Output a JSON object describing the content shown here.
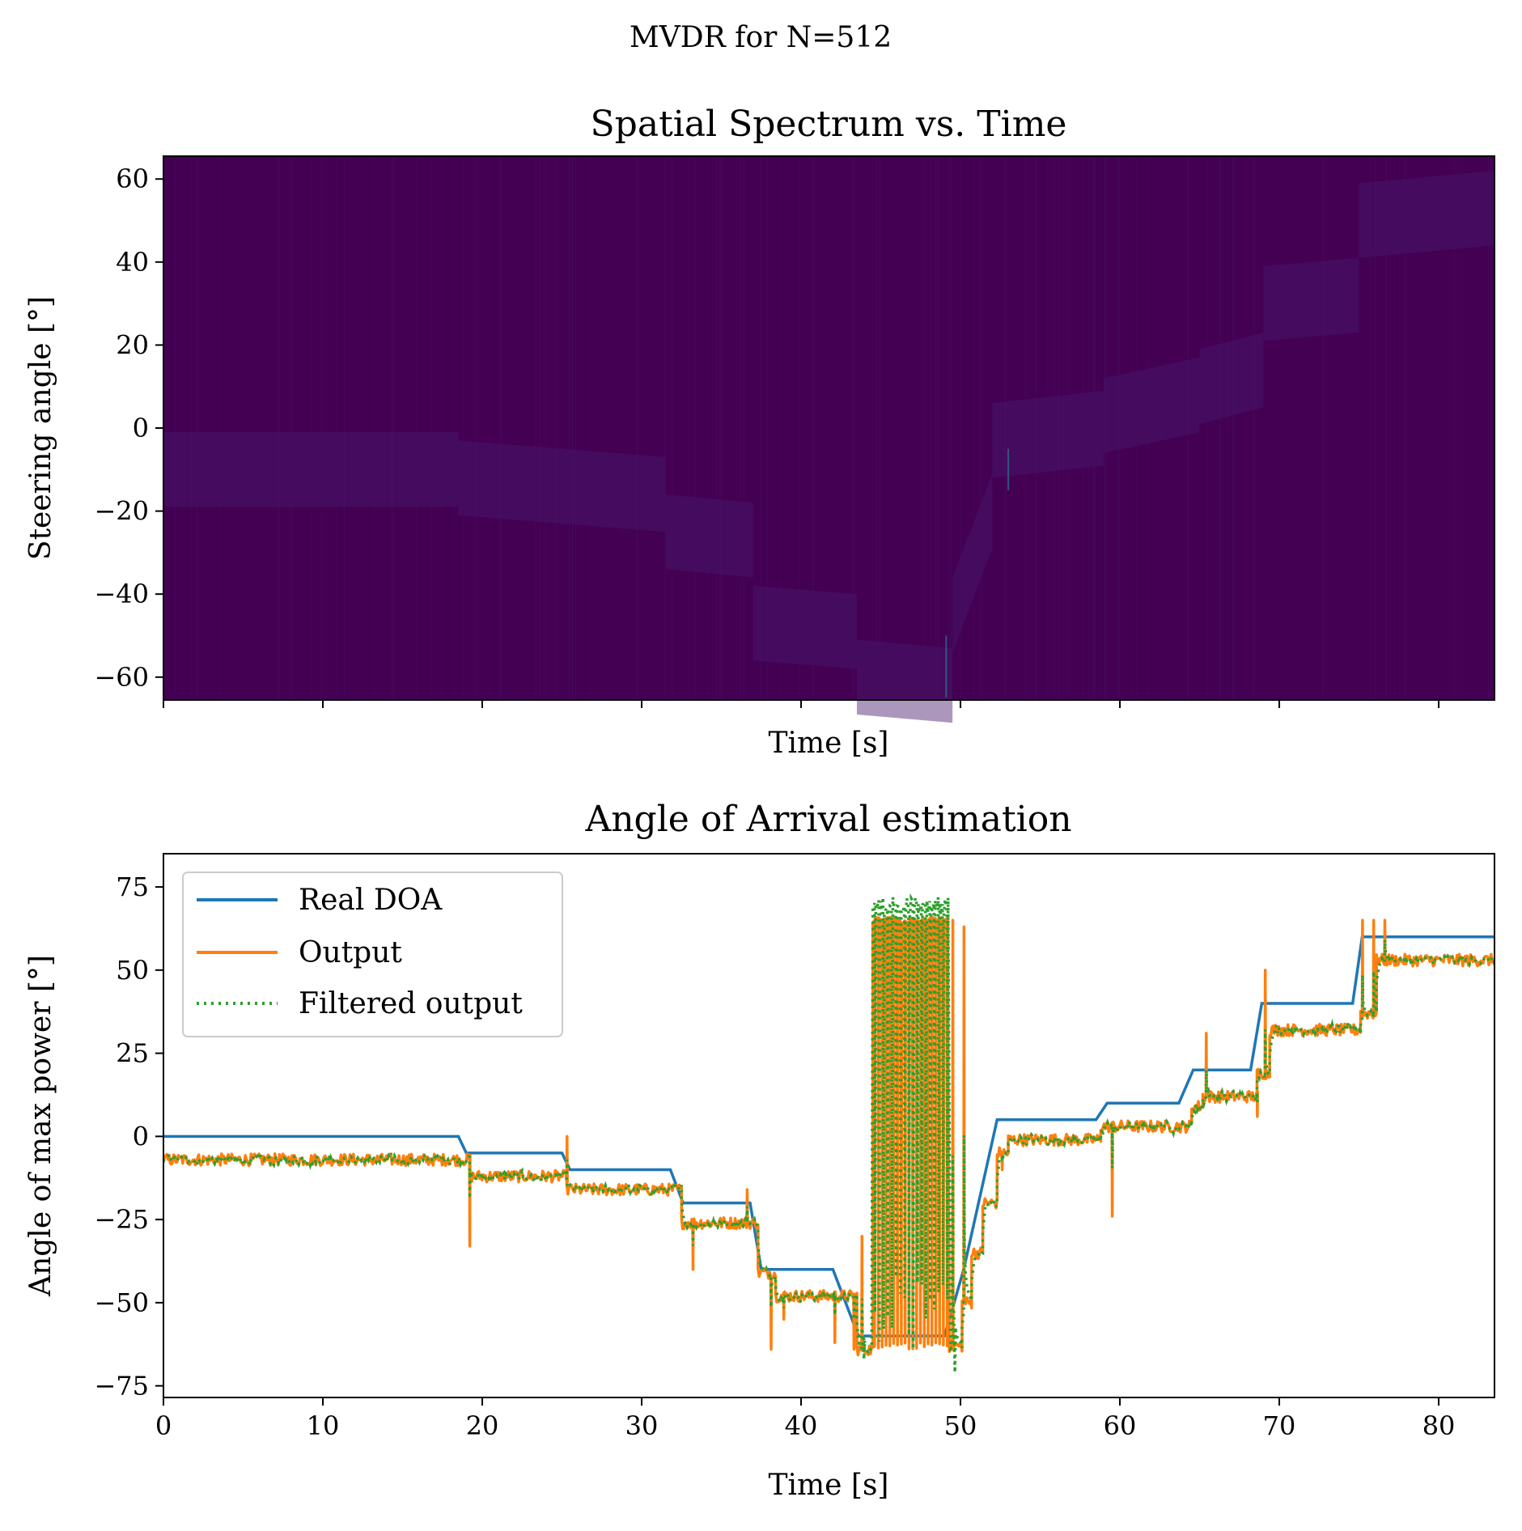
{
  "figure": {
    "suptitle": "MVDR for N=512"
  },
  "chart_data": [
    {
      "type": "heatmap",
      "title": "Spatial Spectrum vs. Time",
      "xlabel": "Time [s]",
      "ylabel": "Steering angle [°]",
      "xlim": [
        0,
        83.5
      ],
      "ylim": [
        -65.5,
        65.5
      ],
      "x_ticks": [
        0,
        10,
        20,
        30,
        40,
        50,
        60,
        70,
        80
      ],
      "x_tick_labels_shown": false,
      "y_ticks": [
        60,
        40,
        20,
        0,
        -20,
        -40,
        -60
      ],
      "y_tick_labels": [
        "60",
        "40",
        "20",
        "0",
        "−20",
        "−40",
        "−60"
      ],
      "colormap": {
        "low": "#440154",
        "faint": "#48186a",
        "bright": "#2a788e"
      },
      "ridge": [
        {
          "t0": 0,
          "t1": 18.5,
          "a0": -10,
          "a1": -10
        },
        {
          "t0": 18.5,
          "t1": 25,
          "a0": -12,
          "a1": -14
        },
        {
          "t0": 25,
          "t1": 31.5,
          "a0": -14,
          "a1": -16
        },
        {
          "t0": 31.5,
          "t1": 37,
          "a0": -25,
          "a1": -27
        },
        {
          "t0": 37,
          "t1": 43.5,
          "a0": -47,
          "a1": -49
        },
        {
          "t0": 43.5,
          "t1": 49.5,
          "a0": -60,
          "a1": -62
        },
        {
          "t0": 49.5,
          "t1": 52,
          "a0": -45,
          "a1": -20
        },
        {
          "t0": 52,
          "t1": 59,
          "a0": -3,
          "a1": 0
        },
        {
          "t0": 59,
          "t1": 65,
          "a0": 3,
          "a1": 8
        },
        {
          "t0": 65,
          "t1": 69,
          "a0": 10,
          "a1": 14
        },
        {
          "t0": 69,
          "t1": 75,
          "a0": 30,
          "a1": 32
        },
        {
          "t0": 75,
          "t1": 83.5,
          "a0": 50,
          "a1": 53
        }
      ],
      "hot_spots": [
        {
          "t": 49.1,
          "a0": -65,
          "a1": -50
        },
        {
          "t": 53,
          "a0": -15,
          "a1": -5
        }
      ]
    },
    {
      "type": "line",
      "title": "Angle of Arrival estimation",
      "xlabel": "Time [s]",
      "ylabel": "Angle of max power [°]",
      "xlim": [
        0,
        83.5
      ],
      "ylim": [
        -78.5,
        85
      ],
      "x_ticks": [
        0,
        10,
        20,
        30,
        40,
        50,
        60,
        70,
        80
      ],
      "x_tick_labels": [
        "0",
        "10",
        "20",
        "30",
        "40",
        "50",
        "60",
        "70",
        "80"
      ],
      "y_ticks": [
        75,
        50,
        25,
        0,
        -25,
        -50,
        -75
      ],
      "y_tick_labels": [
        "75",
        "50",
        "25",
        "0",
        "−25",
        "−50",
        "−75"
      ],
      "legend": {
        "position": "upper-left"
      },
      "series": [
        {
          "name": "Real DOA",
          "color": "#1f77b4",
          "style": "solid",
          "x": [
            0,
            18.5,
            19,
            25,
            25.5,
            31.8,
            32.6,
            36.8,
            37.5,
            42,
            43.6,
            49,
            50.2,
            52.3,
            58.5,
            59.2,
            63.7,
            64.6,
            68.2,
            68.9,
            74.6,
            75.2,
            83.5
          ],
          "y": [
            0,
            0,
            -5,
            -5,
            -10,
            -10,
            -20,
            -20,
            -40,
            -40,
            -60,
            -60,
            -40,
            5,
            5,
            10,
            10,
            20,
            20,
            40,
            40,
            60,
            60
          ]
        },
        {
          "name": "Output",
          "color": "#ff7f0e",
          "style": "solid",
          "levels": [
            {
              "t0": 0,
              "t1": 19.2,
              "y": -7
            },
            {
              "t0": 19.2,
              "t1": 25.3,
              "y": -12
            },
            {
              "t0": 25.3,
              "t1": 32.5,
              "y": -16
            },
            {
              "t0": 32.5,
              "t1": 37.3,
              "y": -26
            },
            {
              "t0": 37.3,
              "t1": 38.4,
              "y": -41
            },
            {
              "t0": 38.4,
              "t1": 43.5,
              "y": -48
            },
            {
              "t0": 43.5,
              "t1": 44.5,
              "y": -64
            },
            {
              "t0": 44.5,
              "t1": 49.3,
              "y": 65
            },
            {
              "t0": 49.3,
              "t1": 50.1,
              "y": -63
            },
            {
              "t0": 50.1,
              "t1": 50.7,
              "y": -50
            },
            {
              "t0": 50.7,
              "t1": 51.4,
              "y": -35
            },
            {
              "t0": 51.4,
              "t1": 52.3,
              "y": -20
            },
            {
              "t0": 52.3,
              "t1": 53,
              "y": -5
            },
            {
              "t0": 53,
              "t1": 58.8,
              "y": -1
            },
            {
              "t0": 58.8,
              "t1": 64.5,
              "y": 3
            },
            {
              "t0": 64.5,
              "t1": 65.2,
              "y": 9
            },
            {
              "t0": 65.2,
              "t1": 68.6,
              "y": 12
            },
            {
              "t0": 68.6,
              "t1": 69.4,
              "y": 19
            },
            {
              "t0": 69.4,
              "t1": 75.1,
              "y": 32
            },
            {
              "t0": 75.1,
              "t1": 76.1,
              "y": 37
            },
            {
              "t0": 76.1,
              "t1": 83.5,
              "y": 53
            }
          ],
          "noise_amplitude": 1.8,
          "spikes": [
            {
              "t": 19.2,
              "y": -33
            },
            {
              "t": 25.3,
              "y": 0
            },
            {
              "t": 33.2,
              "y": -40
            },
            {
              "t": 36.6,
              "y": -16
            },
            {
              "t": 38.1,
              "y": -64
            },
            {
              "t": 38.9,
              "y": -55
            },
            {
              "t": 42.1,
              "y": -62
            },
            {
              "t": 43.3,
              "y": -64
            },
            {
              "t": 43.8,
              "y": -30
            },
            {
              "t": 52.6,
              "y": -10
            },
            {
              "t": 59.5,
              "y": -24
            },
            {
              "t": 65.4,
              "y": 31
            },
            {
              "t": 68.6,
              "y": 6
            },
            {
              "t": 69.1,
              "y": 50
            },
            {
              "t": 75.2,
              "y": 65
            },
            {
              "t": 75.9,
              "y": 65
            },
            {
              "t": 76.6,
              "y": 65
            }
          ],
          "switch_window": {
            "t0": 44.5,
            "t1": 49.3,
            "hi": 66,
            "lo": -64,
            "count": 20
          },
          "late_spikes": [
            {
              "t": 49.5,
              "y": 65
            },
            {
              "t": 50.2,
              "y": 63
            }
          ]
        },
        {
          "name": "Filtered output",
          "color": "#2ca02c",
          "style": "dotted",
          "switch_window": {
            "t0": 44.5,
            "t1": 49.3,
            "hi": 72,
            "lo": -69,
            "count": 18
          },
          "extra_lows": [
            {
              "t": 43.9,
              "y": -67
            },
            {
              "t": 49.6,
              "y": -71
            }
          ]
        }
      ]
    }
  ]
}
